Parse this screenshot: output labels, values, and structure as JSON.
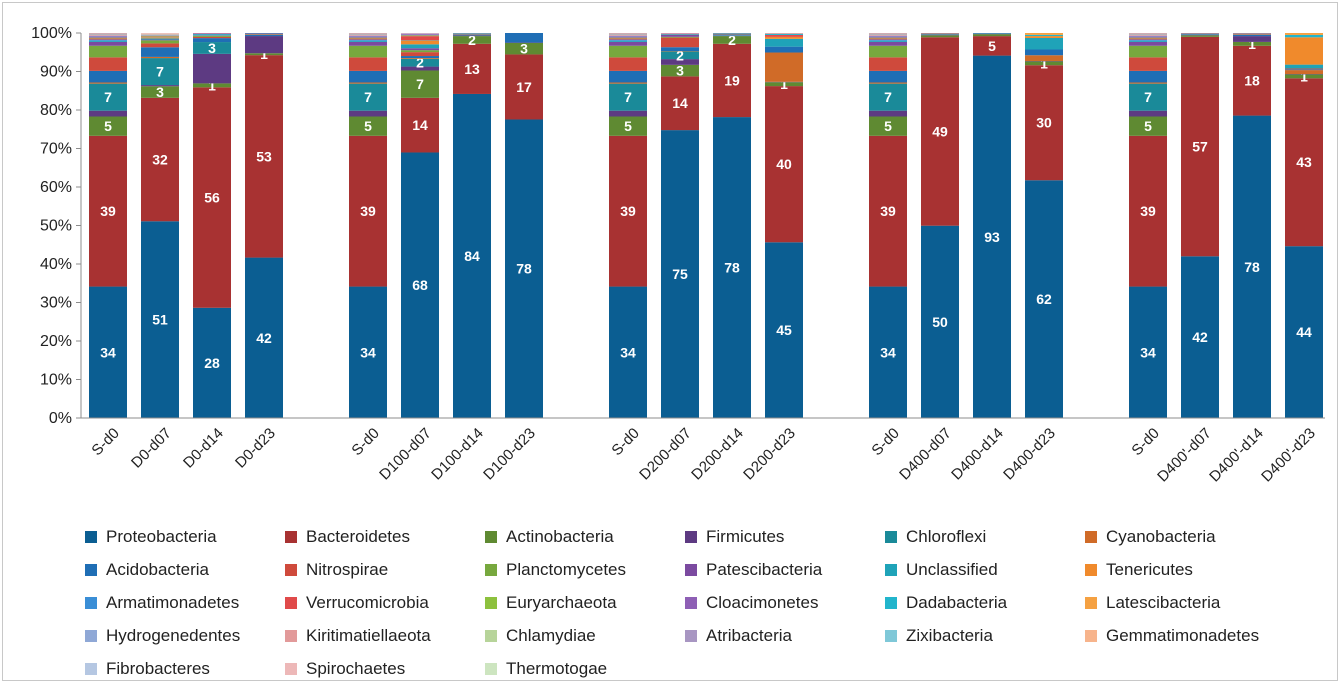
{
  "chart_data": {
    "type": "bar",
    "stacked": true,
    "title": "",
    "xlabel": "",
    "ylabel": "",
    "ylim": [
      0,
      100
    ],
    "y_ticks": [
      "0%",
      "10%",
      "20%",
      "30%",
      "40%",
      "50%",
      "60%",
      "70%",
      "80%",
      "90%",
      "100%"
    ],
    "grid": false,
    "legend_position": "bottom",
    "groups": [
      [
        "S-d0",
        "D0-d07",
        "D0-d14",
        "D0-d23"
      ],
      [
        "S-d0",
        "D100-d07",
        "D100-d14",
        "D100-d23"
      ],
      [
        "S-d0",
        "D200-d07",
        "D200-d14",
        "D200-d23"
      ],
      [
        "S-d0",
        "D400-d07",
        "D400-d14",
        "D400-d23"
      ],
      [
        "S-d0",
        "D400'-d07",
        "D400'-d14",
        "D400'-d23"
      ]
    ],
    "categories": [
      "S-d0",
      "D0-d07",
      "D0-d14",
      "D0-d23",
      "S-d0",
      "D100-d07",
      "D100-d14",
      "D100-d23",
      "S-d0",
      "D200-d07",
      "D200-d14",
      "D200-d23",
      "S-d0",
      "D400-d07",
      "D400-d14",
      "D400-d23",
      "S-d0",
      "D400'-d07",
      "D400'-d14",
      "D400'-d23"
    ],
    "series": [
      {
        "name": "Proteobacteria",
        "color": "#0B5E92",
        "values": [
          34,
          51,
          28,
          42,
          34,
          68,
          84,
          78,
          34,
          75,
          78,
          45,
          34,
          50,
          93,
          62,
          34,
          42,
          78,
          44
        ],
        "labels": [
          "34",
          "51",
          "28",
          "42",
          "34",
          "68",
          "84",
          "78",
          "34",
          "75",
          "78",
          "45",
          "34",
          "50",
          "93",
          "62",
          "34",
          "42",
          "78",
          "44"
        ]
      },
      {
        "name": "Bacteroidetes",
        "color": "#A83232",
        "values": [
          39,
          32,
          56,
          53,
          39,
          14,
          13,
          17,
          39,
          14,
          19,
          40,
          39,
          49,
          5,
          30,
          39,
          57,
          18,
          43
        ],
        "labels": [
          "39",
          "32",
          "56",
          "53",
          "39",
          "14",
          "13",
          "17",
          "39",
          "14",
          "19",
          "40",
          "39",
          "49",
          "5",
          "30",
          "39",
          "57",
          "18",
          "43"
        ]
      },
      {
        "name": "Actinobacteria",
        "color": "#5F8A32",
        "values": [
          5,
          3,
          1,
          0.5,
          5,
          7,
          2,
          3,
          5,
          3,
          2,
          1,
          5,
          0.5,
          0.5,
          1,
          5,
          0.4,
          1,
          1
        ],
        "labels": [
          "5",
          "3",
          "1",
          "1",
          "5",
          "7",
          "2",
          "3",
          "5",
          "3",
          "2",
          "1",
          "5",
          "",
          "",
          "1",
          "5",
          "",
          "1",
          "1"
        ]
      },
      {
        "name": "Firmicutes",
        "color": "#5D3A82",
        "values": [
          1.5,
          0.3,
          7.5,
          4.5,
          1.5,
          1,
          0.2,
          0.1,
          1.5,
          1.5,
          0.1,
          0.1,
          1.5,
          0.1,
          0.1,
          0.1,
          1.5,
          0.1,
          1.5,
          0.1
        ],
        "labels": []
      },
      {
        "name": "Chloroflexi",
        "color": "#1A8A99",
        "values": [
          7,
          7,
          3,
          0,
          7,
          2,
          0.1,
          0,
          7,
          2,
          0.1,
          0,
          7,
          0.1,
          0.1,
          0,
          7,
          0.1,
          0,
          0
        ],
        "labels": [
          "7",
          "7",
          "3",
          "",
          "7",
          "2",
          "",
          "",
          "7",
          "2",
          "",
          "",
          "7",
          "",
          "",
          "",
          "7",
          "",
          "",
          ""
        ]
      },
      {
        "name": "Cyanobacteria",
        "color": "#D06B28",
        "values": [
          0.3,
          0.3,
          0,
          0,
          0.3,
          0.2,
          0,
          0,
          0.3,
          0.1,
          0,
          7.5,
          0.3,
          0,
          0,
          1.5,
          0.3,
          0,
          0,
          1
        ]
      },
      {
        "name": "Acidobacteria",
        "color": "#1F6EB5",
        "values": [
          3,
          2.5,
          1,
          0.3,
          3,
          0.5,
          0.1,
          2.5,
          3,
          1,
          0.2,
          1.5,
          3,
          0.1,
          0.1,
          1.5,
          3,
          0.1,
          0.3,
          0.2
        ]
      },
      {
        "name": "Nitrospirae",
        "color": "#CF4A3C",
        "values": [
          3.5,
          1,
          0.3,
          0.1,
          3.5,
          1,
          0.1,
          0,
          3.5,
          2.5,
          0.1,
          0,
          3.5,
          0.1,
          0,
          0,
          3.5,
          0,
          0.1,
          0.2
        ]
      },
      {
        "name": "Planctomycetes",
        "color": "#77A83E",
        "values": [
          3,
          0.8,
          0.3,
          0.1,
          3,
          0.5,
          0.1,
          0,
          3,
          0.2,
          0.1,
          0,
          3,
          0,
          0,
          0,
          3,
          0,
          0.1,
          0
        ]
      },
      {
        "name": "Patescibacteria",
        "color": "#7B4AA0",
        "values": [
          1,
          0.2,
          0.1,
          0.2,
          1,
          0.5,
          0.1,
          0,
          1,
          0.5,
          0.1,
          0,
          1,
          0,
          0,
          0,
          1,
          0.1,
          0.1,
          0
        ]
      },
      {
        "name": "Unclassified",
        "color": "#1FA3B8",
        "values": [
          0.3,
          0.3,
          0.3,
          0.1,
          0.3,
          1,
          0.1,
          0,
          0.3,
          0.2,
          0.1,
          2,
          0.3,
          0.1,
          0,
          3,
          0.3,
          0.1,
          0.1,
          1
        ]
      },
      {
        "name": "Tenericutes",
        "color": "#F08A2C",
        "values": [
          0,
          0.3,
          0,
          0,
          0,
          1,
          0,
          0,
          0,
          0,
          0,
          0.5,
          0,
          0,
          0,
          0.5,
          0,
          0,
          0,
          7
        ]
      },
      {
        "name": "Armatimonadetes",
        "color": "#3A8ED6",
        "values": [
          0.3,
          0.1,
          0.1,
          0,
          0.3,
          0.1,
          0,
          0,
          0.3,
          0,
          0,
          0,
          0.3,
          0,
          0,
          0,
          0.3,
          0,
          0,
          0
        ]
      },
      {
        "name": "Verrucomicrobia",
        "color": "#E04A4A",
        "values": [
          0.3,
          0.1,
          0.1,
          0,
          0.3,
          1,
          0,
          0,
          0.3,
          0.1,
          0,
          0.5,
          0.3,
          0.1,
          0,
          0,
          0.3,
          0.1,
          0.1,
          0
        ]
      },
      {
        "name": "Euryarchaeota",
        "color": "#8DC13E",
        "values": [
          0.2,
          0.2,
          0,
          0,
          0.2,
          0.2,
          0,
          0,
          0.2,
          0,
          0,
          0,
          0.2,
          0,
          0,
          0,
          0.2,
          0,
          0,
          0
        ]
      },
      {
        "name": "Cloacimonetes",
        "color": "#8E5FB5",
        "values": [
          0.3,
          0.1,
          0.1,
          0,
          0.3,
          0.3,
          0,
          0,
          0.3,
          0.1,
          0,
          0,
          0.3,
          0,
          0,
          0,
          0.3,
          0,
          0,
          0
        ]
      },
      {
        "name": "Dadabacteria",
        "color": "#22B5CC",
        "values": [
          0,
          0,
          0,
          0,
          0,
          0,
          0,
          0,
          0,
          0,
          0,
          0.3,
          0,
          0,
          0,
          0.3,
          0,
          0,
          0,
          0.6
        ]
      },
      {
        "name": "Latescibacteria",
        "color": "#F5A142",
        "values": [
          0,
          0,
          0,
          0,
          0,
          0,
          0,
          0,
          0,
          0,
          0,
          0,
          0,
          0,
          0,
          0.5,
          0,
          0,
          0,
          0.5
        ]
      },
      {
        "name": "Hydrogenedentes",
        "color": "#8FA8D6",
        "values": [
          0.2,
          0.1,
          0,
          0,
          0.2,
          0.1,
          0,
          0,
          0.2,
          0,
          0,
          0,
          0.2,
          0,
          0,
          0,
          0.2,
          0,
          0,
          0
        ]
      },
      {
        "name": "Kiritimatiellaeota",
        "color": "#E29A9A",
        "values": [
          0.2,
          0.1,
          0,
          0,
          0.2,
          0.1,
          0,
          0,
          0.2,
          0.1,
          0,
          0.2,
          0.2,
          0,
          0,
          0,
          0.2,
          0,
          0,
          0
        ]
      },
      {
        "name": "Chlamydiae",
        "color": "#B7D49A",
        "values": [
          0.1,
          0.1,
          0,
          0,
          0.1,
          0,
          0,
          0,
          0.1,
          0,
          0,
          0,
          0.1,
          0,
          0,
          0,
          0.1,
          0,
          0,
          0
        ]
      },
      {
        "name": "Atribacteria",
        "color": "#A896C2",
        "values": [
          0.3,
          0.1,
          0,
          0,
          0.3,
          0.1,
          0,
          0,
          0.3,
          0,
          0,
          0,
          0.3,
          0,
          0,
          0,
          0.3,
          0,
          0,
          0
        ]
      },
      {
        "name": "Zixibacteria",
        "color": "#7FC8D8",
        "values": [
          0,
          0,
          0,
          0,
          0,
          0,
          0,
          0,
          0,
          0,
          0,
          0,
          0,
          0,
          0,
          0,
          0,
          0,
          0,
          0
        ]
      },
      {
        "name": "Gemmatimonadetes",
        "color": "#F7B48C",
        "values": [
          0.1,
          0.1,
          0,
          0,
          0.1,
          0,
          0,
          0,
          0.1,
          0,
          0,
          0,
          0.1,
          0,
          0,
          0,
          0.1,
          0,
          0,
          0
        ]
      },
      {
        "name": "Fibrobacteres",
        "color": "#B5C7E2",
        "values": [
          0,
          0,
          0,
          0,
          0,
          0,
          0,
          0,
          0,
          0,
          0,
          0,
          0,
          0,
          0,
          0,
          0,
          0,
          0,
          0
        ]
      },
      {
        "name": "Spirochaetes",
        "color": "#EDB8B8",
        "values": [
          0,
          0.1,
          0,
          0,
          0,
          0,
          0,
          0,
          0,
          0,
          0,
          0,
          0,
          0,
          0,
          0,
          0,
          0,
          0,
          0
        ]
      },
      {
        "name": "Thermotogae",
        "color": "#CDE5C0",
        "values": [
          0,
          0,
          0,
          0,
          0,
          0,
          0,
          0,
          0,
          0,
          0,
          0,
          0,
          0,
          0,
          0,
          0,
          0,
          0,
          0
        ]
      }
    ]
  }
}
